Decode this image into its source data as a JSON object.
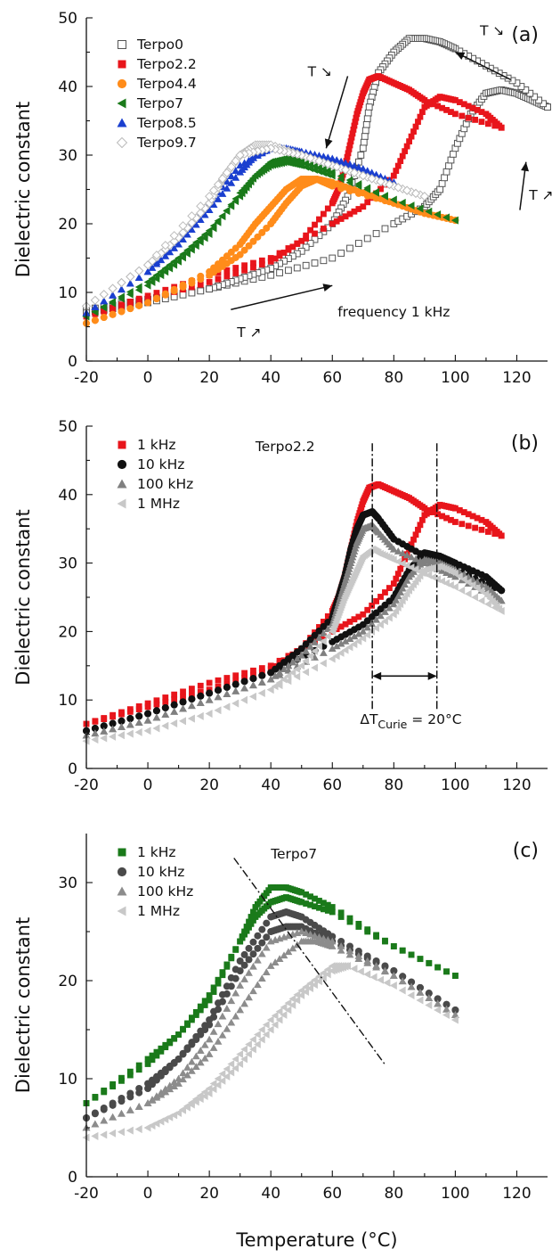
{
  "figure": {
    "xlabel": "Temperature (°C)"
  },
  "chart_data": [
    {
      "type": "scatter",
      "panel": "(a)",
      "ylabel": "Dielectric constant",
      "xlim": [
        -20,
        130
      ],
      "ylim": [
        0,
        50
      ],
      "xticks": [
        "-20",
        "0",
        "20",
        "40",
        "60",
        "80",
        "100",
        "120"
      ],
      "yticks": [
        "0",
        "10",
        "20",
        "30",
        "40",
        "50"
      ],
      "legend_position": "top-left",
      "annotations": {
        "frequency": "frequency 1 kHz",
        "t_heat_1": "T ↗",
        "t_heat_2": "T ↗",
        "t_cool_1": "T ↘",
        "t_cool_2": "T ↘"
      },
      "series": [
        {
          "name": "Terpo0",
          "marker": "square-open",
          "color": "#555555",
          "x": [
            -20,
            0,
            20,
            40,
            60,
            80,
            90,
            95,
            100,
            105,
            110,
            115,
            120,
            125,
            130
          ],
          "y": [
            7.5,
            9,
            10.5,
            12.5,
            15,
            20,
            22.5,
            25,
            31,
            36,
            39,
            39.5,
            39,
            38,
            37
          ],
          "cooling_x": [
            130,
            120,
            110,
            100,
            95,
            90,
            85,
            80,
            75,
            72,
            70,
            65,
            60,
            50,
            40,
            30,
            20,
            0,
            -20
          ],
          "cooling_y": [
            37,
            40.5,
            43,
            45.5,
            46.5,
            47,
            47,
            45,
            42,
            37,
            31,
            24,
            20,
            16,
            13.5,
            12,
            10.5,
            8.5,
            7
          ]
        },
        {
          "name": "Terpo2.2",
          "marker": "square",
          "color": "#e8151b",
          "x": [
            -20,
            0,
            20,
            40,
            60,
            70,
            80,
            85,
            90,
            95,
            100,
            110,
            115
          ],
          "y": [
            6.5,
            9.5,
            12.5,
            15,
            20,
            22.5,
            27,
            32,
            37,
            38.5,
            38,
            36,
            34
          ],
          "cooling_x": [
            115,
            100,
            90,
            85,
            80,
            75,
            72,
            70,
            68,
            66,
            64,
            62,
            60,
            50,
            40,
            20,
            0,
            -20
          ],
          "cooling_y": [
            34,
            36,
            38,
            39.5,
            40.5,
            41.5,
            41,
            39,
            36,
            32,
            28,
            25,
            23,
            17.5,
            14.5,
            11.5,
            9,
            6.5
          ]
        },
        {
          "name": "Terpo4.4",
          "marker": "circle",
          "color": "#ff8c1a",
          "x": [
            -20,
            0,
            20,
            30,
            40,
            45,
            50,
            55,
            60,
            70,
            80,
            90,
            100
          ],
          "y": [
            5.5,
            8.5,
            12.5,
            15.5,
            20,
            23,
            25.5,
            26.5,
            26,
            24.5,
            23,
            21.5,
            20.5
          ],
          "cooling_x": [
            100,
            80,
            60,
            55,
            50,
            45,
            40,
            35,
            30,
            20,
            0,
            -20
          ],
          "cooling_y": [
            20.5,
            23,
            25.5,
            26.5,
            26.5,
            25,
            22.5,
            20,
            17,
            13,
            8.5,
            5.5
          ]
        },
        {
          "name": "Terpo7",
          "marker": "triangle-left",
          "color": "#1a7a1a",
          "x": [
            -20,
            0,
            10,
            20,
            30,
            35,
            40,
            45,
            50,
            60,
            80,
            100
          ],
          "y": [
            6.5,
            11.5,
            15,
            19,
            24,
            27,
            29,
            29.5,
            29,
            27.5,
            23.5,
            20.5
          ],
          "cooling_x": [
            100,
            80,
            60,
            50,
            45,
            40,
            35,
            30,
            20,
            10,
            0,
            -20
          ],
          "cooling_y": [
            20.5,
            23.5,
            27,
            28.5,
            29,
            28.5,
            27,
            24.5,
            18.5,
            14.5,
            11,
            6.5
          ]
        },
        {
          "name": "Terpo8.5",
          "marker": "triangle-up",
          "color": "#1a3fcf",
          "x": [
            -20,
            0,
            10,
            20,
            30,
            35,
            40,
            45,
            50,
            60,
            70,
            80
          ],
          "y": [
            7,
            13,
            17,
            22,
            27.5,
            30,
            31,
            31,
            30.5,
            29.5,
            28,
            26
          ],
          "cooling_x": [
            80,
            60,
            50,
            40,
            30,
            20,
            0,
            -20
          ],
          "cooling_y": [
            26,
            29,
            30.5,
            31,
            28.5,
            23,
            13,
            7
          ]
        },
        {
          "name": "Terpo9.7",
          "marker": "diamond-open",
          "color": "#bbbbbb",
          "x": [
            -20,
            0,
            10,
            20,
            25,
            30,
            35,
            40,
            50,
            60,
            70,
            80,
            90
          ],
          "y": [
            8,
            14,
            18,
            23,
            27,
            30,
            31.5,
            31.5,
            30,
            28.5,
            27,
            25.5,
            24
          ],
          "cooling_x": [
            90,
            70,
            50,
            40,
            30,
            20,
            0,
            -20
          ],
          "cooling_y": [
            24,
            27,
            30,
            31,
            30,
            24,
            14,
            8
          ]
        }
      ]
    },
    {
      "type": "scatter",
      "panel": "(b)",
      "ylabel": "Dielectric constant",
      "xlim": [
        -20,
        130
      ],
      "ylim": [
        0,
        50
      ],
      "xticks": [
        "-20",
        "0",
        "20",
        "40",
        "60",
        "80",
        "100",
        "120"
      ],
      "yticks": [
        "0",
        "10",
        "20",
        "30",
        "40",
        "50"
      ],
      "legend_position": "top-left",
      "sample_label": "Terpo2.2",
      "annotations": {
        "delta_prefix": "ΔT",
        "delta_sub": "Curie",
        "delta_value": " = 20°C",
        "vline_1_x": 73,
        "vline_2_x": 94
      },
      "series": [
        {
          "name": "1 kHz",
          "marker": "square",
          "color": "#e8151b",
          "x": [
            -20,
            0,
            20,
            40,
            60,
            70,
            80,
            85,
            90,
            95,
            100,
            110,
            115
          ],
          "y": [
            6.5,
            9.5,
            12.5,
            15,
            20,
            22.5,
            27,
            32,
            37,
            38.5,
            38,
            36,
            34
          ],
          "cooling_x": [
            115,
            100,
            90,
            85,
            80,
            75,
            72,
            70,
            68,
            66,
            64,
            62,
            60,
            50,
            40,
            20,
            0,
            -20
          ],
          "cooling_y": [
            34,
            36,
            38,
            39.5,
            40.5,
            41.5,
            41,
            39,
            36,
            32,
            28,
            25,
            23,
            17.5,
            14.5,
            11.5,
            9,
            6.5
          ]
        },
        {
          "name": "10 kHz",
          "marker": "circle",
          "color": "#111111",
          "x": [
            -20,
            0,
            20,
            40,
            60,
            70,
            80,
            85,
            90,
            95,
            100,
            110,
            115
          ],
          "y": [
            5.5,
            8,
            11,
            14,
            18.5,
            21,
            25,
            29,
            31.5,
            31,
            30,
            28,
            26
          ],
          "cooling_x": [
            115,
            100,
            90,
            80,
            75,
            73,
            70,
            68,
            66,
            64,
            62,
            60,
            50,
            40,
            20,
            0,
            -20
          ],
          "cooling_y": [
            26,
            29,
            31,
            33.5,
            36.5,
            37.5,
            37,
            35,
            32,
            28,
            25,
            22,
            17.5,
            14,
            11,
            8,
            5.5
          ]
        },
        {
          "name": "100 kHz",
          "marker": "triangle-up",
          "color": "#808080",
          "x": [
            -20,
            0,
            20,
            40,
            60,
            70,
            80,
            85,
            90,
            95,
            100,
            110,
            115
          ],
          "y": [
            4.8,
            7,
            10,
            13,
            17.5,
            20,
            24,
            28,
            30.5,
            30,
            29,
            26.5,
            24.5
          ],
          "cooling_x": [
            115,
            100,
            90,
            80,
            75,
            73,
            70,
            68,
            66,
            64,
            62,
            60,
            50,
            40,
            20,
            0,
            -20
          ],
          "cooling_y": [
            24.5,
            28,
            30,
            32,
            34.5,
            35.5,
            35,
            33,
            30,
            27,
            24,
            21,
            16.5,
            13,
            10,
            7,
            4.8
          ]
        },
        {
          "name": "1 MHz",
          "marker": "triangle-left",
          "color": "#c8c8c8",
          "x": [
            -20,
            0,
            20,
            40,
            60,
            70,
            80,
            85,
            90,
            95,
            100,
            110,
            115
          ],
          "y": [
            4,
            5.5,
            8,
            11.5,
            16,
            19,
            22.5,
            26,
            29,
            29.5,
            28.5,
            25.5,
            23
          ],
          "cooling_x": [
            115,
            100,
            90,
            80,
            75,
            73,
            70,
            68,
            66,
            64,
            62,
            60,
            50,
            40,
            20,
            0,
            -20
          ],
          "cooling_y": [
            23,
            26.5,
            28.5,
            30.5,
            31.5,
            32,
            31,
            29,
            27,
            25,
            22.5,
            20,
            15,
            11.5,
            8,
            5.5,
            4
          ]
        }
      ]
    },
    {
      "type": "scatter",
      "panel": "(c)",
      "ylabel": "Dielectric constant",
      "xlim": [
        -20,
        130
      ],
      "ylim": [
        0,
        35
      ],
      "xticks": [
        "-20",
        "0",
        "20",
        "40",
        "60",
        "80",
        "100",
        "120"
      ],
      "yticks": [
        "0",
        "10",
        "20",
        "30"
      ],
      "legend_position": "top-left",
      "sample_label": "Terpo7",
      "annotations": {
        "dashdot_line": {
          "x": [
            28,
            77
          ],
          "y": [
            32.5,
            11.5
          ]
        }
      },
      "series": [
        {
          "name": "1 kHz",
          "marker": "square",
          "color": "#1a7a1a",
          "x": [
            -20,
            0,
            10,
            20,
            30,
            35,
            40,
            45,
            50,
            60,
            80,
            100
          ],
          "y": [
            7.5,
            12,
            14.5,
            18,
            24,
            27.5,
            29.5,
            29.5,
            29,
            27.5,
            23.5,
            20.5
          ],
          "cooling_x": [
            100,
            80,
            60,
            50,
            45,
            40,
            35,
            30,
            20,
            10,
            0,
            -20
          ],
          "cooling_y": [
            20.5,
            23.5,
            27,
            28,
            28.5,
            28,
            26.5,
            24,
            18.5,
            14.5,
            11.5,
            7.5
          ]
        },
        {
          "name": "10 kHz",
          "marker": "circle",
          "color": "#4a4a4a",
          "x": [
            -20,
            0,
            10,
            20,
            30,
            40,
            45,
            50,
            60,
            80,
            100
          ],
          "y": [
            6,
            9.5,
            12,
            15.5,
            21,
            25,
            25.5,
            25.5,
            24,
            21,
            17
          ],
          "cooling_x": [
            100,
            80,
            60,
            50,
            45,
            40,
            30,
            20,
            10,
            0,
            -20
          ],
          "cooling_y": [
            17,
            21,
            24.5,
            26.5,
            27,
            26.5,
            22,
            16,
            12,
            9,
            6
          ]
        },
        {
          "name": "100 kHz",
          "marker": "triangle-up",
          "color": "#8c8c8c",
          "x": [
            -20,
            0,
            10,
            20,
            30,
            40,
            50,
            55,
            60,
            80,
            100
          ],
          "y": [
            5,
            7.5,
            9.5,
            12.5,
            17,
            21.5,
            24,
            24,
            23.5,
            20.5,
            16.5
          ],
          "cooling_x": [
            100,
            80,
            60,
            50,
            40,
            30,
            20,
            10,
            0,
            -20
          ],
          "cooling_y": [
            16.5,
            20.5,
            24,
            25,
            24,
            19.5,
            14,
            10,
            7.5,
            5
          ]
        },
        {
          "name": "1 MHz",
          "marker": "triangle-left",
          "color": "#c8c8c8",
          "x": [
            -20,
            0,
            10,
            20,
            30,
            40,
            50,
            60,
            65,
            80,
            100
          ],
          "y": [
            4,
            5,
            6.5,
            8.5,
            11.5,
            15,
            18.5,
            21,
            21.5,
            19.5,
            16
          ],
          "cooling_x": [
            100,
            80,
            65,
            60,
            50,
            40,
            30,
            20,
            10,
            0,
            -20
          ],
          "cooling_y": [
            16,
            19.5,
            21.5,
            21.5,
            19,
            16,
            12.5,
            9,
            6.5,
            5,
            4
          ]
        }
      ]
    }
  ]
}
